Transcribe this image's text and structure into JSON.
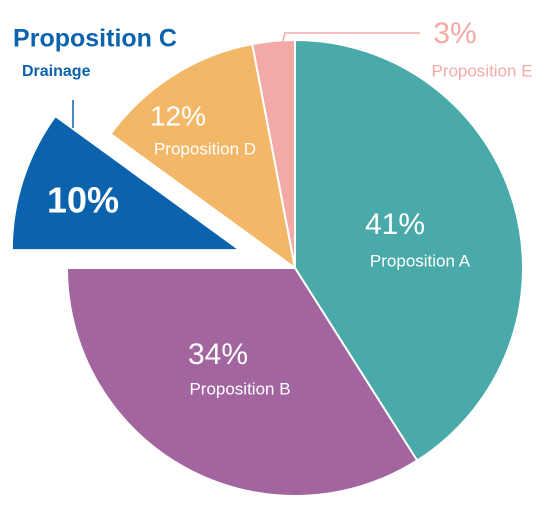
{
  "chart_data": {
    "type": "pie",
    "categories": [
      "Proposition A",
      "Proposition B",
      "Proposition C",
      "Proposition D",
      "Proposition E"
    ],
    "values": [
      41,
      34,
      10,
      12,
      3
    ],
    "value_labels": [
      "41%",
      "34%",
      "10%",
      "12%",
      "3%"
    ],
    "colors": [
      "#4aaaa9",
      "#a3659f",
      "#0c63ad",
      "#f2b868",
      "#f3aaa7"
    ],
    "exploded": [
      false,
      false,
      true,
      false,
      false
    ],
    "annotation": "Drainage"
  }
}
